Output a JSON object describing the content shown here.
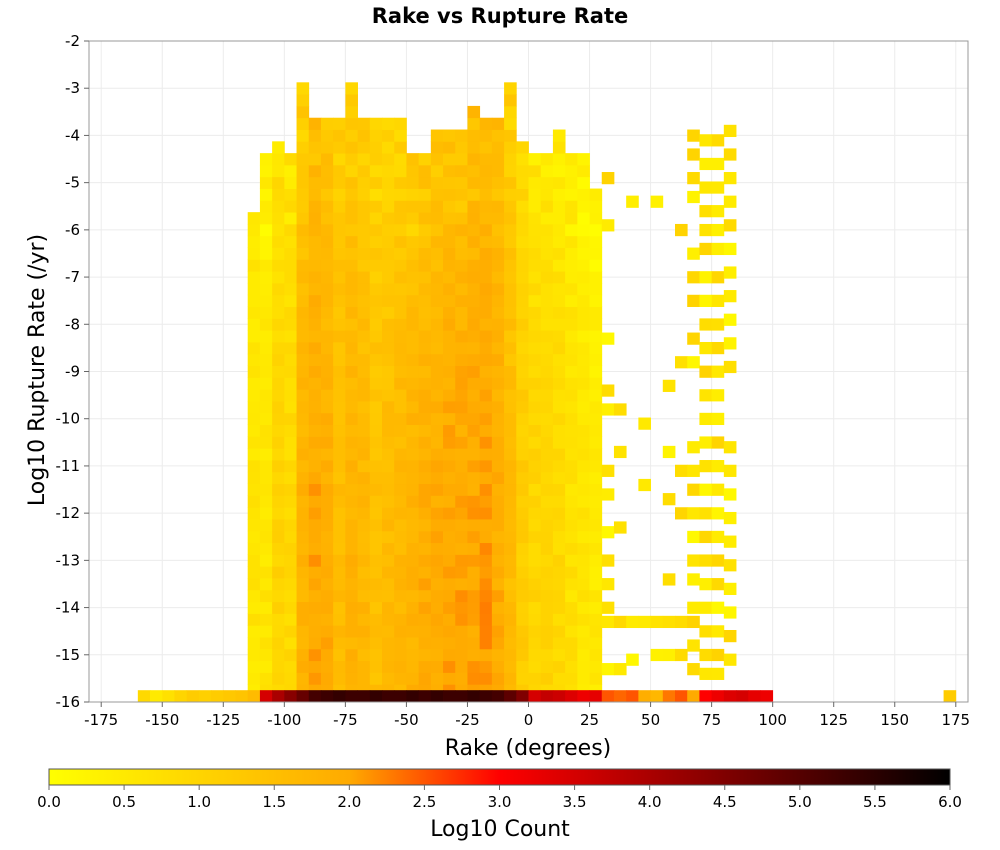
{
  "chart_data": {
    "type": "heatmap",
    "title": "Rake vs Rupture Rate",
    "xlabel": "Rake (degrees)",
    "ylabel": "Log10 Rupture Rate (/yr)",
    "xlim": [
      -180,
      180
    ],
    "ylim": [
      -16,
      -2
    ],
    "x_ticks": [
      -175,
      -150,
      -125,
      -100,
      -75,
      -50,
      -25,
      0,
      25,
      50,
      75,
      100,
      125,
      150,
      175
    ],
    "y_ticks": [
      -2,
      -3,
      -4,
      -5,
      -6,
      -7,
      -8,
      -9,
      -10,
      -11,
      -12,
      -13,
      -14,
      -15,
      -16
    ],
    "grid": true,
    "bin_width_x": 5,
    "bin_width_y": 0.25,
    "colorbar": {
      "label": "Log10 Count",
      "range": [
        0.0,
        6.0
      ],
      "ticks": [
        "0.0",
        "0.5",
        "1.0",
        "1.5",
        "2.0",
        "2.5",
        "3.0",
        "3.5",
        "4.0",
        "4.5",
        "5.0",
        "5.5",
        "6.0"
      ],
      "colors": [
        "#ffff00",
        "#ffaa00",
        "#ff0000",
        "#000000"
      ]
    },
    "bottom_row": {
      "y": -16,
      "x": [
        -157.5,
        -152.5,
        -147.5,
        -142.5,
        -137.5,
        -132.5,
        -127.5,
        -122.5,
        -117.5,
        -112.5,
        -107.5,
        -102.5,
        -97.5,
        -92.5,
        -87.5,
        -82.5,
        -77.5,
        -72.5,
        -67.5,
        -62.5,
        -57.5,
        -52.5,
        -47.5,
        -42.5,
        -37.5,
        -32.5,
        -27.5,
        -22.5,
        -17.5,
        -12.5,
        -7.5,
        -2.5,
        2.5,
        7.5,
        12.5,
        17.5,
        22.5,
        27.5,
        32.5,
        37.5,
        42.5,
        47.5,
        52.5,
        57.5,
        62.5,
        67.5,
        72.5,
        77.5,
        82.5,
        87.5,
        92.5,
        97.5,
        172.5
      ],
      "values": [
        0.9,
        0.5,
        0.7,
        1.0,
        1.2,
        1.1,
        1.2,
        1.3,
        1.4,
        1.6,
        3.5,
        4.0,
        4.4,
        4.8,
        5.2,
        5.3,
        5.4,
        5.3,
        5.3,
        5.4,
        5.3,
        5.3,
        5.4,
        5.3,
        5.4,
        5.3,
        5.3,
        5.4,
        5.3,
        5.2,
        4.9,
        4.5,
        3.5,
        3.7,
        3.6,
        3.4,
        3.2,
        3.3,
        2.5,
        2.4,
        2.5,
        1.9,
        1.7,
        2.3,
        2.5,
        2.0,
        3.0,
        3.2,
        3.4,
        3.5,
        3.3,
        3.2,
        1.2
      ]
    },
    "columns": [
      {
        "x": -112.5,
        "y_max": -5.4,
        "level": 0.6,
        "min_level": 0.3,
        "gaps_above": -5.6
      },
      {
        "x": -107.5,
        "y_max": -4.4,
        "level": 0.6,
        "min_level": 0.2
      },
      {
        "x": -102.5,
        "y_max": -4.2,
        "level": 1.0,
        "min_level": 0.6
      },
      {
        "x": -97.5,
        "y_max": -4.4,
        "level": 0.9,
        "min_level": 0.5
      },
      {
        "x": -92.5,
        "y_max": -3.0,
        "level": 1.8,
        "min_level": 1.0
      },
      {
        "x": -87.5,
        "y_max": -3.6,
        "level": 2.0,
        "min_level": 1.4
      },
      {
        "x": -82.5,
        "y_max": -3.6,
        "level": 1.9,
        "min_level": 1.2
      },
      {
        "x": -77.5,
        "y_max": -3.6,
        "level": 1.6,
        "min_level": 1.0
      },
      {
        "x": -72.5,
        "y_max": -3.0,
        "level": 1.8,
        "min_level": 1.0
      },
      {
        "x": -67.5,
        "y_max": -3.6,
        "level": 1.7,
        "min_level": 1.0
      },
      {
        "x": -62.5,
        "y_max": -3.6,
        "level": 1.5,
        "min_level": 0.8
      },
      {
        "x": -57.5,
        "y_max": -3.6,
        "level": 1.6,
        "min_level": 0.8
      },
      {
        "x": -52.5,
        "y_max": -3.6,
        "level": 1.7,
        "min_level": 0.9
      },
      {
        "x": -47.5,
        "y_max": -4.4,
        "level": 1.8,
        "min_level": 1.1
      },
      {
        "x": -42.5,
        "y_max": -4.4,
        "level": 1.9,
        "min_level": 1.2
      },
      {
        "x": -37.5,
        "y_max": -3.8,
        "level": 1.9,
        "min_level": 1.2
      },
      {
        "x": -32.5,
        "y_max": -3.8,
        "level": 2.0,
        "min_level": 1.3
      },
      {
        "x": -27.5,
        "y_max": -3.8,
        "level": 2.0,
        "min_level": 1.3
      },
      {
        "x": -22.5,
        "y_max": -3.4,
        "level": 2.0,
        "min_level": 1.4
      },
      {
        "x": -17.5,
        "y_max": -3.6,
        "level": 2.1,
        "min_level": 1.4
      },
      {
        "x": -12.5,
        "y_max": -3.6,
        "level": 1.9,
        "min_level": 1.4
      },
      {
        "x": -7.5,
        "y_max": -3.0,
        "level": 1.6,
        "min_level": 1.0
      },
      {
        "x": -2.5,
        "y_max": -4.2,
        "level": 1.2,
        "min_level": 0.8
      },
      {
        "x": 2.5,
        "y_max": -4.4,
        "level": 1.0,
        "min_level": 0.4
      },
      {
        "x": 7.5,
        "y_max": -4.4,
        "level": 1.0,
        "min_level": 0.4
      },
      {
        "x": 12.5,
        "y_max": -3.8,
        "level": 0.9,
        "min_level": 0.3
      },
      {
        "x": 17.5,
        "y_max": -4.4,
        "level": 0.7,
        "min_level": 0.3
      },
      {
        "x": 22.5,
        "y_max": -4.4,
        "level": 0.6,
        "min_level": 0.2
      },
      {
        "x": 27.5,
        "y_max": -5.2,
        "level": 0.5,
        "min_level": 0.1
      }
    ],
    "sparse_columns": [
      {
        "x": 32.5,
        "y": [
          -4.9,
          -5.9,
          -8.3,
          -9.4,
          -9.8,
          -11.1,
          -11.6,
          -12.4,
          -13.0,
          -13.5,
          -14.0,
          -14.3,
          -15.3
        ]
      },
      {
        "x": 37.5,
        "y": [
          -9.8,
          -10.7,
          -12.3,
          -14.3,
          -15.3
        ]
      },
      {
        "x": 42.5,
        "y": [
          -5.4,
          -14.3,
          -15.1
        ]
      },
      {
        "x": 47.5,
        "y": [
          -10.1,
          -11.4,
          -14.3
        ]
      },
      {
        "x": 52.5,
        "y": [
          -5.4,
          -14.3,
          -15.0
        ]
      },
      {
        "x": 57.5,
        "y": [
          -9.3,
          -10.7,
          -11.7,
          -13.4,
          -14.3,
          -15.0
        ]
      },
      {
        "x": 62.5,
        "y": [
          -6.0,
          -8.8,
          -11.1,
          -12.0,
          -14.3,
          -15.0
        ]
      },
      {
        "x": 67.5,
        "y": [
          -4.0,
          -4.4,
          -4.9,
          -5.3,
          -6.5,
          -7.0,
          -7.5,
          -8.3,
          -8.8,
          -10.6,
          -11.1,
          -11.5,
          -12.0,
          -12.5,
          -13.0,
          -13.4,
          -14.0,
          -14.3,
          -14.8,
          -15.3
        ]
      },
      {
        "x": 72.5,
        "y": [
          -4.1,
          -4.6,
          -5.1,
          -5.6,
          -6.0,
          -6.4,
          -7.0,
          -7.5,
          -8.0,
          -8.5,
          -9.0,
          -9.5,
          -10.0,
          -10.5,
          -11.0,
          -11.5,
          -12.0,
          -12.5,
          -13.0,
          -13.5,
          -14.0,
          -14.5,
          -15.0,
          -15.4
        ]
      },
      {
        "x": 77.5,
        "y": [
          -4.1,
          -4.6,
          -5.1,
          -5.6,
          -6.0,
          -6.4,
          -7.0,
          -7.5,
          -8.0,
          -8.5,
          -9.0,
          -9.5,
          -10.0,
          -10.5,
          -11.0,
          -11.5,
          -12.0,
          -12.5,
          -13.0,
          -13.5,
          -14.0,
          -14.5,
          -15.0,
          -15.4
        ]
      },
      {
        "x": 82.5,
        "y": [
          -3.9,
          -4.4,
          -4.9,
          -5.4,
          -5.9,
          -6.4,
          -6.9,
          -7.4,
          -7.9,
          -8.4,
          -8.9,
          -10.6,
          -11.1,
          -11.6,
          -12.1,
          -12.6,
          -13.1,
          -13.6,
          -14.1,
          -14.6,
          -15.1
        ]
      }
    ]
  }
}
